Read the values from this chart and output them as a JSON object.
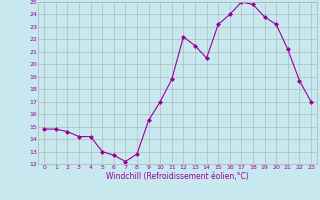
{
  "hours": [
    0,
    1,
    2,
    3,
    4,
    5,
    6,
    7,
    8,
    9,
    10,
    11,
    12,
    13,
    14,
    15,
    16,
    17,
    18,
    19,
    20,
    21,
    22,
    23
  ],
  "windchill": [
    14.8,
    14.8,
    14.6,
    14.2,
    14.2,
    13.0,
    12.7,
    12.2,
    12.8,
    15.5,
    17.0,
    18.8,
    22.2,
    21.5,
    20.5,
    23.2,
    24.0,
    25.0,
    24.8,
    23.8,
    23.2,
    21.2,
    18.7,
    17.0
  ],
  "line_color": "#990099",
  "marker": "D",
  "marker_size": 2,
  "bg_color": "#c8e8f0",
  "grid_color": "#b0b0b0",
  "tick_label_color": "#990099",
  "xlabel": "Windchill (Refroidissement éolien,°C)",
  "xlabel_color": "#990099",
  "ylim": [
    12,
    25
  ],
  "xlim": [
    -0.5,
    23.5
  ],
  "yticks": [
    12,
    13,
    14,
    15,
    16,
    17,
    18,
    19,
    20,
    21,
    22,
    23,
    24,
    25
  ]
}
